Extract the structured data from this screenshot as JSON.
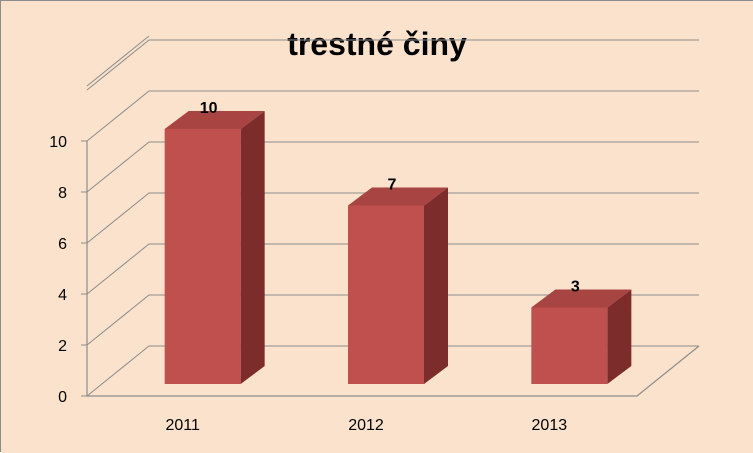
{
  "chart_data": {
    "type": "bar",
    "title": "trestné činy",
    "categories": [
      "2011",
      "2012",
      "2013"
    ],
    "values": [
      10,
      7,
      3
    ],
    "data_labels": [
      "10",
      "7",
      "3"
    ],
    "ylim": [
      0,
      10
    ],
    "yticks": [
      "0",
      "2",
      "4",
      "6",
      "8",
      "10"
    ],
    "xlabel": "",
    "ylabel": "",
    "grid": true,
    "legend": "none",
    "style": "3d-column"
  },
  "colors": {
    "background": "#fbe2cc",
    "bar_front": "#c0504d",
    "bar_side": "#7b2c2b",
    "bar_top": "#a84442",
    "grid": "#8c8c8c",
    "text": "#000000"
  }
}
